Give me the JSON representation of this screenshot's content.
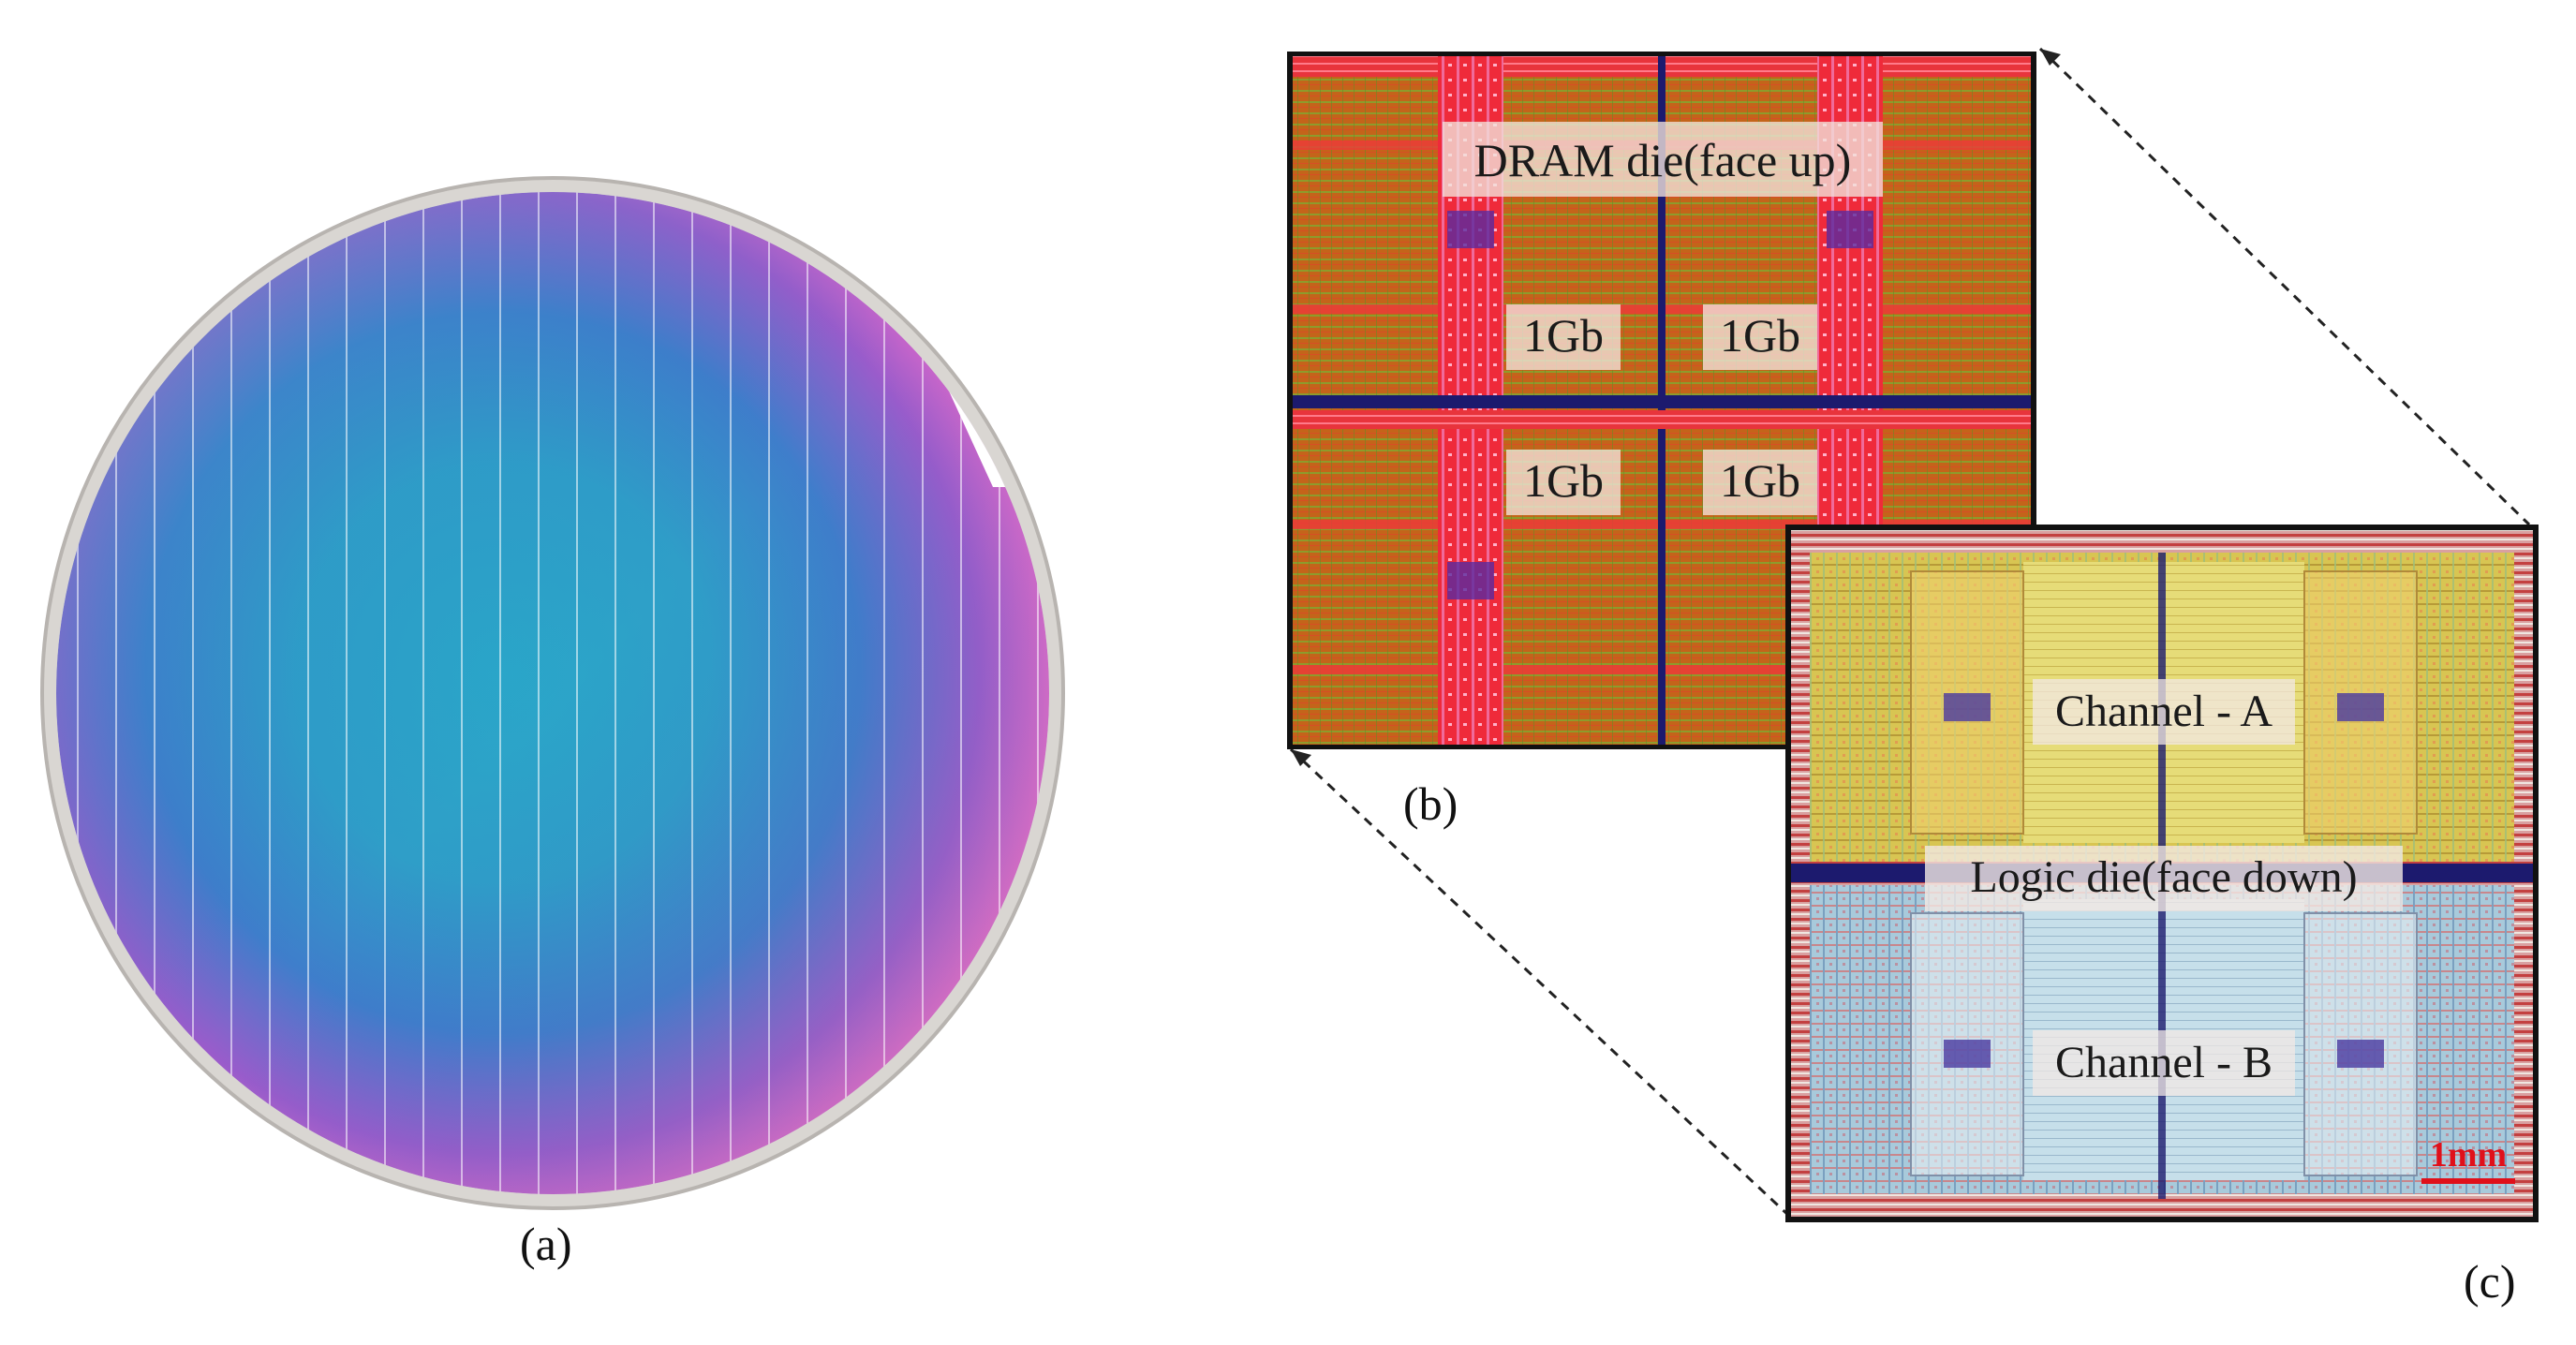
{
  "figure": {
    "panels": {
      "a": {
        "caption": "(a)",
        "subject": "wafer"
      },
      "b": {
        "caption": "(b)",
        "title": "DRAM die(face up)",
        "banks": [
          "1Gb",
          "1Gb",
          "1Gb",
          "1Gb"
        ]
      },
      "c": {
        "caption": "(c)",
        "channel_a": "Channel - A",
        "channel_b": "Channel - B",
        "title": "Logic die(face down)",
        "scale_bar": "1mm"
      }
    },
    "colors": {
      "dram_base": "#c9621a",
      "dram_stripe": "#e8362c",
      "logic_top": "#e7d44a",
      "logic_bottom": "#a9cfe0",
      "scale_red": "#e0101a",
      "divider": "#1c1a6e"
    }
  }
}
